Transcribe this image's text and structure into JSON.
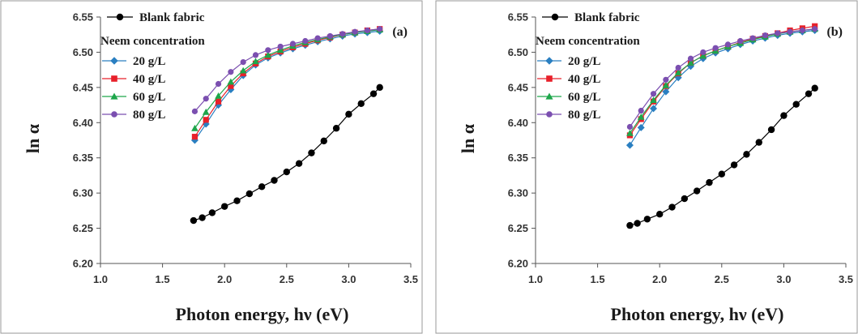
{
  "chart_data": [
    {
      "type": "line",
      "panel_label": "(a)",
      "xlabel": "Photon energy, hν  (eV)",
      "ylabel": "ln α",
      "xlim": [
        1.0,
        3.5
      ],
      "ylim": [
        6.2,
        6.55
      ],
      "x_ticks": [
        "1.0",
        "1.5",
        "2.0",
        "2.5",
        "3.0",
        "3.5"
      ],
      "y_ticks": [
        "6.20",
        "6.25",
        "6.30",
        "6.35",
        "6.40",
        "6.45",
        "6.50",
        "6.55"
      ],
      "legend_title": "Neem concentration",
      "grid": false,
      "series": [
        {
          "name": "Blank fabric",
          "marker": "circle",
          "color": "#000000",
          "x": [
            1.75,
            1.82,
            1.9,
            2.0,
            2.1,
            2.2,
            2.3,
            2.4,
            2.5,
            2.6,
            2.7,
            2.8,
            2.9,
            3.0,
            3.1,
            3.2,
            3.25
          ],
          "y": [
            6.261,
            6.265,
            6.272,
            6.281,
            6.289,
            6.299,
            6.309,
            6.318,
            6.33,
            6.342,
            6.357,
            6.374,
            6.392,
            6.412,
            6.427,
            6.441,
            6.45
          ]
        },
        {
          "name": "20 g/L",
          "marker": "diamond",
          "color": "#2a7fc1",
          "x": [
            1.76,
            1.85,
            1.95,
            2.05,
            2.15,
            2.25,
            2.35,
            2.45,
            2.55,
            2.65,
            2.75,
            2.85,
            2.95,
            3.05,
            3.15,
            3.25
          ],
          "y": [
            6.375,
            6.398,
            6.425,
            6.447,
            6.467,
            6.482,
            6.492,
            6.499,
            6.505,
            6.51,
            6.515,
            6.519,
            6.523,
            6.526,
            6.528,
            6.53
          ]
        },
        {
          "name": "40 g/L",
          "marker": "square",
          "color": "#e8202a",
          "x": [
            1.76,
            1.85,
            1.95,
            2.05,
            2.15,
            2.25,
            2.35,
            2.45,
            2.55,
            2.65,
            2.75,
            2.85,
            2.95,
            3.05,
            3.15,
            3.25
          ],
          "y": [
            6.38,
            6.404,
            6.43,
            6.452,
            6.47,
            6.484,
            6.494,
            6.501,
            6.507,
            6.512,
            6.517,
            6.521,
            6.525,
            6.528,
            6.531,
            6.533
          ]
        },
        {
          "name": "60 g/L",
          "marker": "triangle",
          "color": "#1ea64b",
          "x": [
            1.76,
            1.85,
            1.95,
            2.05,
            2.15,
            2.25,
            2.35,
            2.45,
            2.55,
            2.65,
            2.75,
            2.85,
            2.95,
            3.05,
            3.15,
            3.25
          ],
          "y": [
            6.392,
            6.415,
            6.438,
            6.458,
            6.474,
            6.487,
            6.496,
            6.503,
            6.509,
            6.514,
            6.518,
            6.522,
            6.525,
            6.528,
            6.53,
            6.532
          ]
        },
        {
          "name": "80 g/L",
          "marker": "circle",
          "color": "#7b4fb0",
          "x": [
            1.76,
            1.85,
            1.95,
            2.05,
            2.15,
            2.25,
            2.35,
            2.45,
            2.55,
            2.65,
            2.75,
            2.85,
            2.95,
            3.05,
            3.15,
            3.25
          ],
          "y": [
            6.416,
            6.434,
            6.455,
            6.472,
            6.486,
            6.496,
            6.503,
            6.508,
            6.512,
            6.516,
            6.52,
            6.523,
            6.526,
            6.529,
            6.531,
            6.533
          ]
        }
      ]
    },
    {
      "type": "line",
      "panel_label": "(b)",
      "xlabel": "Photon energy, hν  (eV)",
      "ylabel": "ln α",
      "xlim": [
        1.0,
        3.5
      ],
      "ylim": [
        6.2,
        6.55
      ],
      "x_ticks": [
        "1.0",
        "1.5",
        "2.0",
        "2.5",
        "3.0",
        "3.5"
      ],
      "y_ticks": [
        "6.20",
        "6.25",
        "6.30",
        "6.35",
        "6.40",
        "6.45",
        "6.50",
        "6.55"
      ],
      "legend_title": "Neem concentration",
      "grid": false,
      "series": [
        {
          "name": "Blank fabric",
          "marker": "circle",
          "color": "#000000",
          "x": [
            1.76,
            1.82,
            1.9,
            2.0,
            2.1,
            2.2,
            2.3,
            2.4,
            2.5,
            2.6,
            2.7,
            2.8,
            2.9,
            3.0,
            3.1,
            3.2,
            3.25
          ],
          "y": [
            6.254,
            6.257,
            6.263,
            6.27,
            6.28,
            6.292,
            6.303,
            6.315,
            6.327,
            6.34,
            6.355,
            6.372,
            6.39,
            6.41,
            6.426,
            6.441,
            6.449
          ]
        },
        {
          "name": "20 g/L",
          "marker": "diamond",
          "color": "#2a7fc1",
          "x": [
            1.76,
            1.85,
            1.95,
            2.05,
            2.15,
            2.25,
            2.35,
            2.45,
            2.55,
            2.65,
            2.75,
            2.85,
            2.95,
            3.05,
            3.15,
            3.25
          ],
          "y": [
            6.368,
            6.393,
            6.42,
            6.444,
            6.464,
            6.48,
            6.491,
            6.499,
            6.505,
            6.511,
            6.516,
            6.52,
            6.524,
            6.527,
            6.529,
            6.531
          ]
        },
        {
          "name": "40 g/L",
          "marker": "square",
          "color": "#e8202a",
          "x": [
            1.76,
            1.85,
            1.95,
            2.05,
            2.15,
            2.25,
            2.35,
            2.45,
            2.55,
            2.65,
            2.75,
            2.85,
            2.95,
            3.05,
            3.15,
            3.25
          ],
          "y": [
            6.382,
            6.405,
            6.43,
            6.452,
            6.47,
            6.485,
            6.495,
            6.502,
            6.508,
            6.514,
            6.519,
            6.523,
            6.527,
            6.531,
            6.534,
            6.537
          ]
        },
        {
          "name": "60 g/L",
          "marker": "triangle",
          "color": "#1ea64b",
          "x": [
            1.76,
            1.85,
            1.95,
            2.05,
            2.15,
            2.25,
            2.35,
            2.45,
            2.55,
            2.65,
            2.75,
            2.85,
            2.95,
            3.05,
            3.15,
            3.25
          ],
          "y": [
            6.385,
            6.408,
            6.432,
            6.453,
            6.471,
            6.485,
            6.495,
            6.502,
            6.508,
            6.513,
            6.518,
            6.522,
            6.526,
            6.529,
            6.531,
            6.533
          ]
        },
        {
          "name": "80 g/L",
          "marker": "circle",
          "color": "#7b4fb0",
          "x": [
            1.76,
            1.85,
            1.95,
            2.05,
            2.15,
            2.25,
            2.35,
            2.45,
            2.55,
            2.65,
            2.75,
            2.85,
            2.95,
            3.05,
            3.15,
            3.25
          ],
          "y": [
            6.394,
            6.417,
            6.441,
            6.461,
            6.478,
            6.491,
            6.5,
            6.506,
            6.511,
            6.516,
            6.52,
            6.524,
            6.527,
            6.529,
            6.531,
            6.533
          ]
        }
      ]
    }
  ]
}
